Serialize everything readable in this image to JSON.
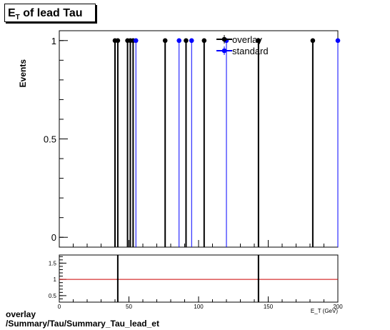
{
  "chart_data": [
    {
      "type": "scatter",
      "title_main": "E",
      "title_sub": "T",
      "title_rest": " of lead Tau",
      "ylabel": "Events",
      "xlabel": "E_T (GeV)",
      "xlim": [
        0,
        200
      ],
      "ylim": [
        -0.05,
        1.05
      ],
      "yticks": [
        0,
        0.5,
        1
      ],
      "ytick_labels": [
        "0",
        "0.5",
        "1"
      ],
      "legend": "top-right",
      "series": [
        {
          "name": "overlay",
          "color": "#000000",
          "x": [
            40,
            42,
            49,
            51,
            53,
            76,
            91,
            104,
            143,
            182
          ],
          "y": [
            1,
            1,
            1,
            1,
            1,
            1,
            1,
            1,
            1,
            1
          ]
        },
        {
          "name": "standard",
          "color": "#0000ff",
          "x": [
            55,
            86,
            95,
            120,
            200
          ],
          "y": [
            1,
            1,
            1,
            1,
            1
          ]
        }
      ]
    },
    {
      "type": "line",
      "xlim": [
        0,
        200
      ],
      "ylim": [
        0.3,
        1.75
      ],
      "xticks": [
        0,
        50,
        100,
        150,
        200
      ],
      "xtick_labels": [
        "0",
        "50",
        "100",
        "150",
        "200"
      ],
      "yticks": [
        0.5,
        1,
        1.5
      ],
      "ytick_labels": [
        "0.5",
        "1",
        "1.5"
      ],
      "reference_line": 1,
      "reference_color": "#cc0000",
      "ratio_spikes_x": [
        42,
        143
      ]
    }
  ],
  "footer": {
    "line1": "overlay",
    "line2": "/Summary/Tau/Summary_Tau_lead_et"
  }
}
